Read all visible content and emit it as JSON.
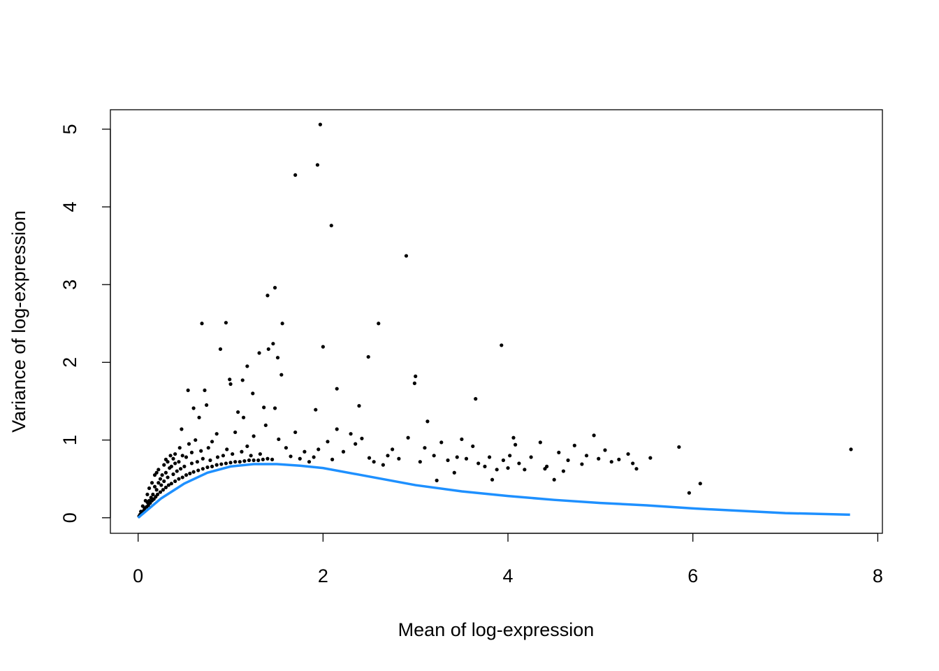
{
  "chart_data": {
    "type": "scatter",
    "title": "",
    "xlabel": "Mean of log-expression",
    "ylabel": "Variance of log-expression",
    "xlim": [
      -0.3,
      8.05
    ],
    "ylim": [
      -0.2,
      5.25
    ],
    "xticks": [
      "0",
      "2",
      "4",
      "6",
      "8"
    ],
    "yticks": [
      "0",
      "1",
      "2",
      "3",
      "4",
      "5"
    ],
    "grid": false,
    "legend": "none",
    "point_color": "#000000",
    "trend_color": "#1E90FF",
    "points": [
      [
        1.97,
        5.06
      ],
      [
        1.94,
        4.54
      ],
      [
        1.7,
        4.41
      ],
      [
        2.09,
        3.76
      ],
      [
        2.9,
        3.37
      ],
      [
        1.48,
        2.96
      ],
      [
        1.4,
        2.86
      ],
      [
        0.69,
        2.5
      ],
      [
        0.95,
        2.51
      ],
      [
        1.56,
        2.5
      ],
      [
        2.6,
        2.5
      ],
      [
        3.93,
        2.22
      ],
      [
        2.0,
        2.2
      ],
      [
        1.46,
        2.24
      ],
      [
        1.41,
        2.17
      ],
      [
        0.89,
        2.17
      ],
      [
        1.31,
        2.12
      ],
      [
        2.49,
        2.07
      ],
      [
        1.51,
        2.06
      ],
      [
        1.18,
        1.95
      ],
      [
        3.0,
        1.82
      ],
      [
        2.99,
        1.73
      ],
      [
        1.55,
        1.84
      ],
      [
        0.99,
        1.78
      ],
      [
        1.13,
        1.77
      ],
      [
        1.0,
        1.72
      ],
      [
        0.54,
        1.64
      ],
      [
        0.72,
        1.64
      ],
      [
        2.15,
        1.66
      ],
      [
        1.24,
        1.6
      ],
      [
        3.65,
        1.53
      ],
      [
        0.74,
        1.45
      ],
      [
        1.36,
        1.42
      ],
      [
        1.48,
        1.41
      ],
      [
        2.39,
        1.44
      ],
      [
        1.92,
        1.39
      ],
      [
        0.6,
        1.41
      ],
      [
        1.08,
        1.36
      ],
      [
        1.14,
        1.29
      ],
      [
        0.66,
        1.29
      ],
      [
        3.13,
        1.24
      ],
      [
        1.38,
        1.19
      ],
      [
        2.15,
        1.14
      ],
      [
        0.47,
        1.14
      ],
      [
        4.93,
        1.06
      ],
      [
        4.06,
        1.03
      ],
      [
        7.71,
        0.88
      ],
      [
        5.85,
        0.91
      ],
      [
        5.54,
        0.77
      ],
      [
        6.08,
        0.44
      ],
      [
        5.96,
        0.32
      ],
      [
        5.39,
        0.63
      ],
      [
        3.23,
        0.48
      ],
      [
        3.83,
        0.49
      ],
      [
        4.5,
        0.49
      ],
      [
        2.05,
        0.98
      ],
      [
        2.1,
        0.75
      ],
      [
        2.22,
        0.85
      ],
      [
        2.3,
        1.08
      ],
      [
        2.35,
        0.95
      ],
      [
        2.42,
        1.02
      ],
      [
        2.55,
        0.72
      ],
      [
        2.65,
        0.68
      ],
      [
        2.75,
        0.88
      ],
      [
        2.82,
        0.76
      ],
      [
        2.92,
        1.03
      ],
      [
        3.05,
        0.72
      ],
      [
        3.1,
        0.9
      ],
      [
        3.2,
        0.8
      ],
      [
        3.28,
        0.97
      ],
      [
        3.35,
        0.74
      ],
      [
        3.42,
        0.58
      ],
      [
        3.5,
        1.01
      ],
      [
        3.55,
        0.76
      ],
      [
        3.62,
        0.92
      ],
      [
        3.68,
        0.7
      ],
      [
        3.75,
        0.66
      ],
      [
        3.8,
        0.78
      ],
      [
        3.88,
        0.62
      ],
      [
        3.95,
        0.74
      ],
      [
        4.02,
        0.8
      ],
      [
        4.08,
        0.94
      ],
      [
        4.12,
        0.7
      ],
      [
        4.18,
        0.62
      ],
      [
        4.25,
        0.78
      ],
      [
        4.35,
        0.97
      ],
      [
        4.42,
        0.66
      ],
      [
        4.55,
        0.84
      ],
      [
        4.6,
        0.6
      ],
      [
        4.65,
        0.74
      ],
      [
        4.72,
        0.93
      ],
      [
        4.8,
        0.69
      ],
      [
        4.85,
        0.8
      ],
      [
        4.98,
        0.76
      ],
      [
        5.05,
        0.87
      ],
      [
        5.12,
        0.72
      ],
      [
        5.2,
        0.75
      ],
      [
        5.3,
        0.82
      ],
      [
        5.35,
        0.7
      ],
      [
        4.4,
        0.63
      ],
      [
        4.0,
        0.64
      ],
      [
        3.45,
        0.78
      ],
      [
        2.7,
        0.8
      ],
      [
        2.5,
        0.77
      ],
      [
        1.6,
        0.9
      ],
      [
        1.65,
        0.79
      ],
      [
        1.75,
        0.76
      ],
      [
        1.8,
        0.85
      ],
      [
        1.85,
        0.72
      ],
      [
        1.9,
        0.78
      ],
      [
        1.95,
        0.88
      ],
      [
        1.52,
        1.01
      ],
      [
        1.7,
        1.1
      ],
      [
        1.25,
        1.05
      ],
      [
        1.05,
        1.1
      ],
      [
        0.85,
        1.08
      ],
      [
        0.8,
        0.98
      ],
      [
        0.62,
        1.0
      ],
      [
        0.55,
        0.95
      ],
      [
        0.45,
        0.9
      ],
      [
        0.4,
        0.82
      ],
      [
        0.35,
        0.8
      ],
      [
        0.3,
        0.75
      ],
      [
        0.22,
        0.62
      ],
      [
        0.18,
        0.55
      ],
      [
        0.15,
        0.45
      ],
      [
        0.12,
        0.38
      ],
      [
        0.1,
        0.3
      ],
      [
        0.08,
        0.22
      ],
      [
        0.05,
        0.15
      ],
      [
        0.03,
        0.08
      ],
      [
        0.02,
        0.04
      ],
      [
        0.01,
        0.02
      ],
      [
        0.04,
        0.06
      ],
      [
        0.06,
        0.09
      ],
      [
        0.07,
        0.12
      ],
      [
        0.09,
        0.14
      ],
      [
        0.11,
        0.16
      ],
      [
        0.13,
        0.19
      ],
      [
        0.15,
        0.22
      ],
      [
        0.17,
        0.24
      ],
      [
        0.19,
        0.27
      ],
      [
        0.21,
        0.3
      ],
      [
        0.24,
        0.33
      ],
      [
        0.27,
        0.36
      ],
      [
        0.3,
        0.39
      ],
      [
        0.33,
        0.42
      ],
      [
        0.36,
        0.44
      ],
      [
        0.4,
        0.47
      ],
      [
        0.44,
        0.5
      ],
      [
        0.48,
        0.52
      ],
      [
        0.52,
        0.55
      ],
      [
        0.56,
        0.57
      ],
      [
        0.6,
        0.59
      ],
      [
        0.65,
        0.61
      ],
      [
        0.7,
        0.63
      ],
      [
        0.75,
        0.65
      ],
      [
        0.8,
        0.66
      ],
      [
        0.85,
        0.68
      ],
      [
        0.9,
        0.69
      ],
      [
        0.95,
        0.7
      ],
      [
        1.0,
        0.71
      ],
      [
        1.05,
        0.72
      ],
      [
        1.1,
        0.72
      ],
      [
        1.15,
        0.73
      ],
      [
        1.2,
        0.74
      ],
      [
        1.25,
        0.74
      ],
      [
        1.3,
        0.74
      ],
      [
        1.35,
        0.75
      ],
      [
        1.4,
        0.76
      ],
      [
        1.45,
        0.75
      ],
      [
        0.12,
        0.22
      ],
      [
        0.16,
        0.3
      ],
      [
        0.2,
        0.36
      ],
      [
        0.25,
        0.42
      ],
      [
        0.28,
        0.47
      ],
      [
        0.32,
        0.52
      ],
      [
        0.38,
        0.56
      ],
      [
        0.42,
        0.6
      ],
      [
        0.46,
        0.63
      ],
      [
        0.5,
        0.66
      ],
      [
        0.58,
        0.7
      ],
      [
        0.64,
        0.72
      ],
      [
        0.7,
        0.76
      ],
      [
        0.78,
        0.74
      ],
      [
        0.86,
        0.78
      ],
      [
        0.92,
        0.8
      ],
      [
        1.02,
        0.82
      ],
      [
        1.12,
        0.85
      ],
      [
        1.22,
        0.8
      ],
      [
        1.32,
        0.82
      ],
      [
        0.24,
        0.5
      ],
      [
        0.3,
        0.58
      ],
      [
        0.36,
        0.66
      ],
      [
        0.44,
        0.72
      ],
      [
        0.52,
        0.78
      ],
      [
        0.18,
        0.4
      ],
      [
        0.26,
        0.55
      ],
      [
        0.34,
        0.64
      ],
      [
        0.4,
        0.7
      ],
      [
        0.48,
        0.8
      ],
      [
        0.58,
        0.84
      ],
      [
        0.68,
        0.86
      ],
      [
        0.76,
        0.9
      ],
      [
        0.96,
        0.88
      ],
      [
        1.18,
        0.92
      ],
      [
        0.1,
        0.2
      ],
      [
        0.14,
        0.26
      ],
      [
        0.22,
        0.45
      ],
      [
        0.2,
        0.58
      ],
      [
        0.28,
        0.68
      ],
      [
        0.32,
        0.72
      ],
      [
        0.38,
        0.76
      ]
    ],
    "trend": {
      "x": [
        0,
        0.1,
        0.25,
        0.5,
        0.75,
        1.0,
        1.25,
        1.5,
        1.75,
        2.0,
        2.5,
        3.0,
        3.5,
        4.0,
        4.5,
        5.0,
        5.5,
        6.0,
        6.5,
        7.0,
        7.7
      ],
      "y": [
        0,
        0.1,
        0.25,
        0.44,
        0.58,
        0.66,
        0.69,
        0.69,
        0.67,
        0.64,
        0.53,
        0.42,
        0.34,
        0.28,
        0.23,
        0.19,
        0.16,
        0.12,
        0.09,
        0.06,
        0.04
      ]
    }
  }
}
